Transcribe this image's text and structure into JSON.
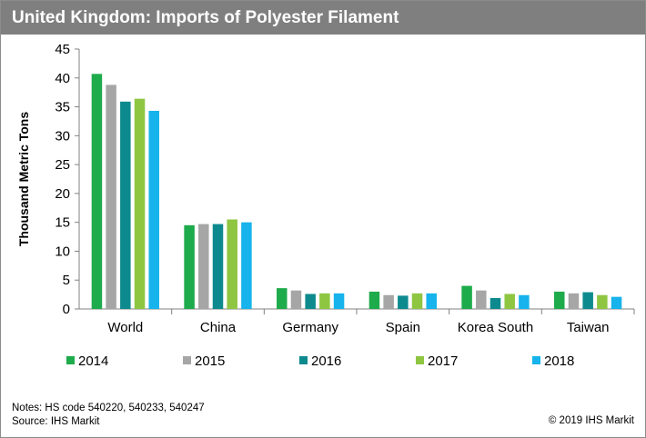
{
  "title": "United Kingdom: Imports of Polyester Filament",
  "notes_line": "Notes: HS code 540220, 540233, 540247",
  "source_line": "Source: IHS Markit",
  "copyright": "© 2019 IHS Markit",
  "colors": {
    "title_bar": "#7f7f7f",
    "title_text": "#ffffff",
    "2014": "#1eab4b",
    "2015": "#a6a6a6",
    "2016": "#0d8a8e",
    "2017": "#8ec641",
    "2018": "#16b3ec"
  },
  "chart_data": {
    "type": "bar",
    "title": "United Kingdom: Imports of Polyester Filament",
    "xlabel": "",
    "ylabel": "Thousand Metric Tons",
    "ylim": [
      0,
      45
    ],
    "yticks": [
      0,
      5,
      10,
      15,
      20,
      25,
      30,
      35,
      40,
      45
    ],
    "grid": false,
    "legend_position": "bottom",
    "categories": [
      "World",
      "China",
      "Germany",
      "Spain",
      "Korea South",
      "Taiwan"
    ],
    "series": [
      {
        "name": "2014",
        "color": "#1eab4b",
        "values": [
          40.7,
          14.5,
          3.6,
          3.0,
          4.0,
          3.0
        ]
      },
      {
        "name": "2015",
        "color": "#a6a6a6",
        "values": [
          38.8,
          14.7,
          3.2,
          2.4,
          3.2,
          2.7
        ]
      },
      {
        "name": "2016",
        "color": "#0d8a8e",
        "values": [
          35.9,
          14.7,
          2.6,
          2.3,
          1.9,
          2.9
        ]
      },
      {
        "name": "2017",
        "color": "#8ec641",
        "values": [
          36.4,
          15.5,
          2.7,
          2.7,
          2.6,
          2.4
        ]
      },
      {
        "name": "2018",
        "color": "#16b3ec",
        "values": [
          34.3,
          15.0,
          2.7,
          2.7,
          2.4,
          2.1
        ]
      }
    ]
  }
}
